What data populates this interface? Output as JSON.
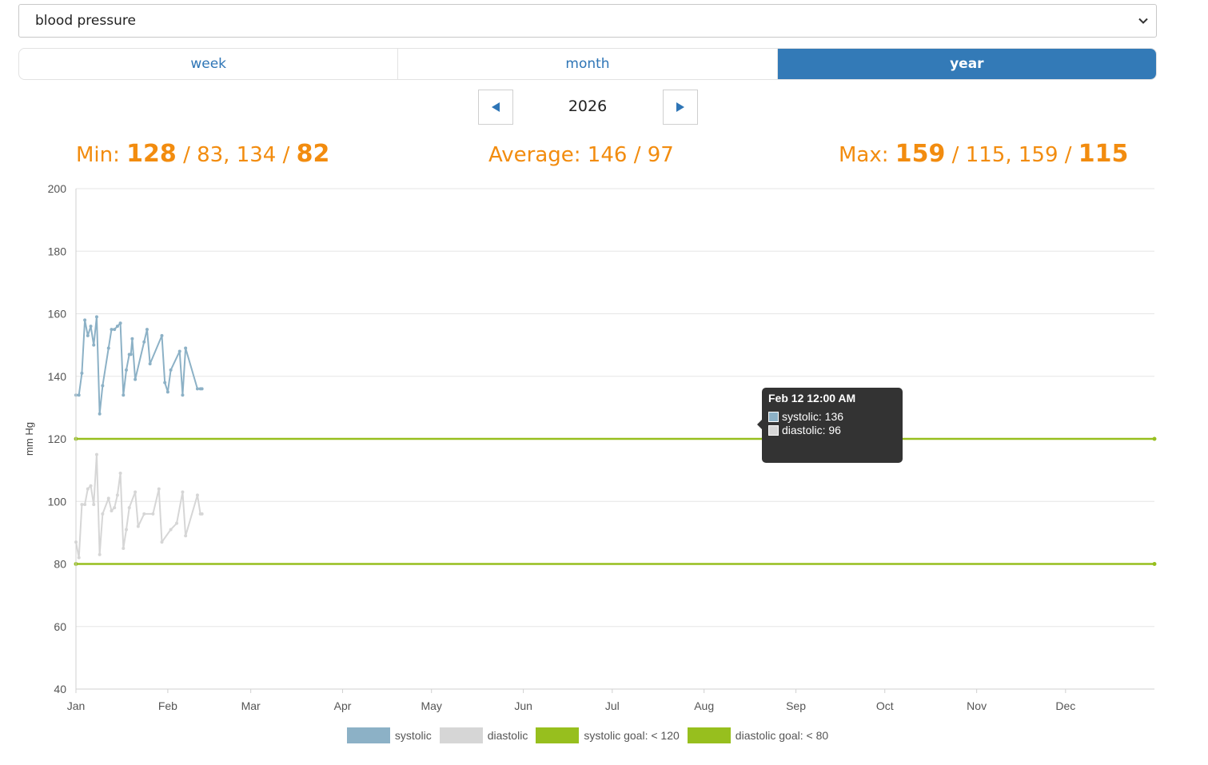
{
  "metric_select": {
    "value": "blood pressure",
    "icon": "chevron-down-icon"
  },
  "tabs": [
    {
      "label": "week",
      "active": false
    },
    {
      "label": "month",
      "active": false
    },
    {
      "label": "year",
      "active": true
    }
  ],
  "period": {
    "year": "2026",
    "prev_icon": "triangle-left-icon",
    "next_icon": "triangle-right-icon"
  },
  "stats": {
    "min_label": "Min:",
    "min_sys1": "128",
    "min_dia1": "83,",
    "min_sys2": "134",
    "min_dia2": "82",
    "avg_label": "Average:",
    "avg_value": "146 / 97",
    "max_label": "Max:",
    "max_sys1": "159",
    "max_dia1": "115,",
    "max_sys2": "159",
    "max_dia2": "115",
    "sep": "/"
  },
  "tooltip": {
    "title": "Feb 12 12:00 AM",
    "systolic": "systolic: 136",
    "diastolic": "diastolic: 96"
  },
  "colors": {
    "systolic": "#8cb1c6",
    "diastolic": "#d6d6d6",
    "goal": "#97bf1e",
    "accent": "#f28c0f",
    "tab_active": "#337ab7"
  },
  "chart_data": {
    "type": "line",
    "ylabel": "mm Hg",
    "ylim": [
      40,
      200
    ],
    "yticks": [
      40,
      60,
      80,
      100,
      120,
      140,
      160,
      180,
      200
    ],
    "xlim": [
      "2026-01-01",
      "2026-12-31"
    ],
    "xticks": [
      {
        "label": "Jan",
        "date": "2026-01-01"
      },
      {
        "label": "Feb",
        "date": "2026-02-01"
      },
      {
        "label": "Mar",
        "date": "2026-03-01"
      },
      {
        "label": "Apr",
        "date": "2026-04-01"
      },
      {
        "label": "May",
        "date": "2026-05-01"
      },
      {
        "label": "Jun",
        "date": "2026-06-01"
      },
      {
        "label": "Jul",
        "date": "2026-07-01"
      },
      {
        "label": "Aug",
        "date": "2026-08-01"
      },
      {
        "label": "Sep",
        "date": "2026-09-01"
      },
      {
        "label": "Oct",
        "date": "2026-10-01"
      },
      {
        "label": "Nov",
        "date": "2026-11-01"
      },
      {
        "label": "Dec",
        "date": "2026-12-01"
      }
    ],
    "grid": true,
    "legend_position": "bottom",
    "series": [
      {
        "name": "systolic",
        "x": [
          "2026-01-01",
          "2026-01-02",
          "2026-01-03",
          "2026-01-04",
          "2026-01-05",
          "2026-01-06",
          "2026-01-07",
          "2026-01-08",
          "2026-01-09",
          "2026-01-10",
          "2026-01-12",
          "2026-01-13",
          "2026-01-14",
          "2026-01-15",
          "2026-01-16",
          "2026-01-17",
          "2026-01-18",
          "2026-01-19",
          "2026-01-19",
          "2026-01-20",
          "2026-01-21",
          "2026-01-24",
          "2026-01-25",
          "2026-01-26",
          "2026-01-30",
          "2026-01-31",
          "2026-02-01",
          "2026-02-02",
          "2026-02-05",
          "2026-02-06",
          "2026-02-07",
          "2026-02-11",
          "2026-02-12",
          "2026-02-12"
        ],
        "values": [
          134,
          134,
          141,
          158,
          153,
          156,
          150,
          159,
          128,
          137,
          149,
          155,
          155,
          156,
          157,
          134,
          142,
          147,
          147,
          152,
          139,
          151,
          155,
          144,
          153,
          138,
          135,
          142,
          148,
          134,
          149,
          136,
          136,
          136
        ]
      },
      {
        "name": "diastolic",
        "x": [
          "2026-01-01",
          "2026-01-02",
          "2026-01-03",
          "2026-01-04",
          "2026-01-05",
          "2026-01-06",
          "2026-01-07",
          "2026-01-08",
          "2026-01-09",
          "2026-01-10",
          "2026-01-12",
          "2026-01-13",
          "2026-01-14",
          "2026-01-15",
          "2026-01-16",
          "2026-01-17",
          "2026-01-18",
          "2026-01-19",
          "2026-01-21",
          "2026-01-22",
          "2026-01-24",
          "2026-01-27",
          "2026-01-29",
          "2026-01-30",
          "2026-02-02",
          "2026-02-04",
          "2026-02-06",
          "2026-02-07",
          "2026-02-11",
          "2026-02-12",
          "2026-02-12"
        ],
        "values": [
          87,
          82,
          99,
          99,
          104,
          105,
          99,
          115,
          83,
          96,
          101,
          97,
          98,
          102,
          109,
          85,
          91,
          98,
          103,
          92,
          96,
          96,
          104,
          87,
          91,
          93,
          103,
          89,
          102,
          96,
          96
        ]
      },
      {
        "name": "systolic goal: < 120",
        "x": [
          "2026-01-01",
          "2026-12-31"
        ],
        "values": [
          120,
          120
        ]
      },
      {
        "name": "diastolic goal: < 80",
        "x": [
          "2026-01-01",
          "2026-12-31"
        ],
        "values": [
          80,
          80
        ]
      }
    ]
  }
}
